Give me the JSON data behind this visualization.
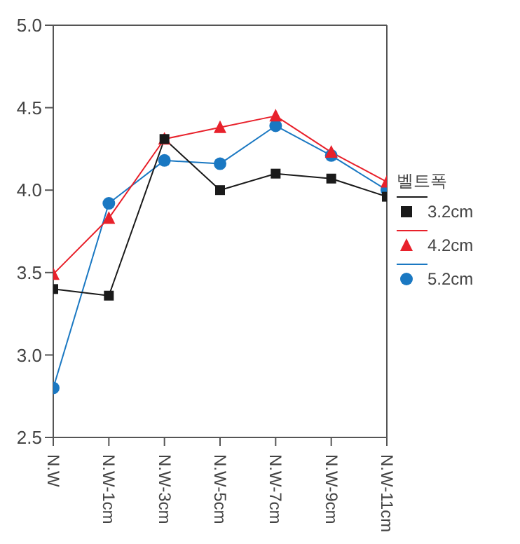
{
  "chart_data": {
    "type": "line",
    "categories": [
      "N.W",
      "N.W-1cm",
      "N.W-3cm",
      "N.W-5cm",
      "N.W-7cm",
      "N.W-9cm",
      "N.W-11cm"
    ],
    "ylim": [
      2.5,
      5.0
    ],
    "yticks": [
      {
        "value": 2.5,
        "label": "2.5"
      },
      {
        "value": 3.0,
        "label": "3.0"
      },
      {
        "value": 3.5,
        "label": "3.5"
      },
      {
        "value": 4.0,
        "label": "4.0"
      },
      {
        "value": 4.5,
        "label": "4.5"
      },
      {
        "value": 5.0,
        "label": "5.0"
      }
    ],
    "legend_title": "벨트폭",
    "legend": "right",
    "grid": false,
    "series": [
      {
        "name": "3.2cm",
        "color": "#1a1a1a",
        "marker": "square",
        "values": [
          3.4,
          3.36,
          4.31,
          4.0,
          4.1,
          4.07,
          3.96
        ]
      },
      {
        "name": "4.2cm",
        "color": "#e8212b",
        "marker": "triangle",
        "values": [
          3.49,
          3.83,
          4.31,
          4.38,
          4.45,
          4.23,
          4.05
        ]
      },
      {
        "name": "5.2cm",
        "color": "#1a78c2",
        "marker": "circle",
        "values": [
          2.8,
          3.92,
          4.18,
          4.16,
          4.39,
          4.21,
          4.0
        ]
      }
    ]
  }
}
